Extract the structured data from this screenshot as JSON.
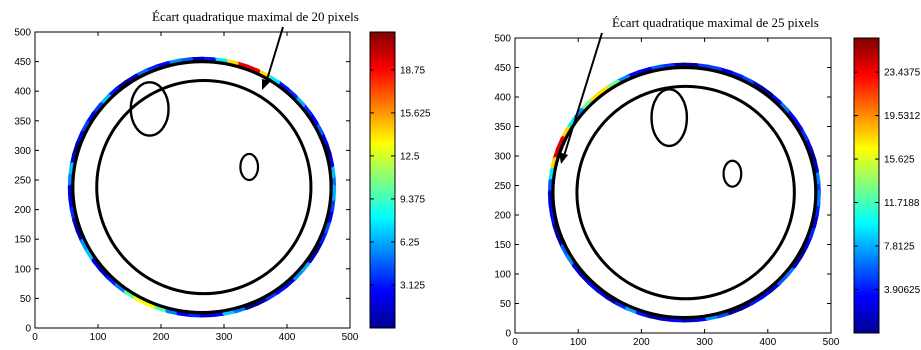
{
  "chart_data": [
    {
      "type": "contour-overlay",
      "annotation": "Écart quadratique maximal de 20 pixels",
      "xlim": [
        0,
        500
      ],
      "ylim": [
        0,
        500
      ],
      "x_ticks": [
        "0",
        "100",
        "200",
        "300",
        "400",
        "500"
      ],
      "y_ticks": [
        "0",
        "50",
        "100",
        "150",
        "200",
        "250",
        "300",
        "350",
        "400",
        "450",
        "500"
      ],
      "colorbar": {
        "min": 0,
        "max": 21.5,
        "ticks": [
          "3.125",
          "6.25",
          "9.375",
          "12.5",
          "15.625",
          "18.75"
        ]
      },
      "contours": {
        "outer": {
          "cx": 265,
          "cy": 238,
          "rx": 205,
          "ry": 212,
          "error_hotspots": [
            {
              "angle": 70,
              "value": 20
            },
            {
              "angle": 245,
              "value": 14
            }
          ]
        },
        "inner": {
          "cx": 268,
          "cy": 238,
          "rx": 170,
          "ry": 180
        },
        "cavity": {
          "cx": 182,
          "cy": 370,
          "rx": 30,
          "ry": 45
        },
        "small_loop": {
          "cx": 340,
          "cy": 272,
          "rx": 14,
          "ry": 22
        }
      }
    },
    {
      "type": "contour-overlay",
      "annotation": "Écart quadratique maximal de 25 pixels",
      "xlim": [
        0,
        500
      ],
      "ylim": [
        0,
        500
      ],
      "x_ticks": [
        "0",
        "100",
        "200",
        "300",
        "400",
        "500"
      ],
      "y_ticks": [
        "0",
        "50",
        "100",
        "150",
        "200",
        "250",
        "300",
        "350",
        "400",
        "450",
        "500"
      ],
      "colorbar": {
        "min": 0,
        "max": 26.5,
        "ticks": [
          "3.90625",
          "7.8125",
          "11.7188",
          "15.625",
          "19.5312",
          "23.4375"
        ]
      },
      "contours": {
        "outer": {
          "cx": 268,
          "cy": 238,
          "rx": 208,
          "ry": 212,
          "error_hotspots": [
            {
              "angle": 160,
              "value": 25
            },
            {
              "angle": 130,
              "value": 18
            }
          ]
        },
        "inner": {
          "cx": 270,
          "cy": 238,
          "rx": 172,
          "ry": 180
        },
        "cavity": {
          "cx": 244,
          "cy": 365,
          "rx": 28,
          "ry": 48
        },
        "small_loop": {
          "cx": 344,
          "cy": 270,
          "rx": 14,
          "ry": 22
        }
      }
    }
  ]
}
